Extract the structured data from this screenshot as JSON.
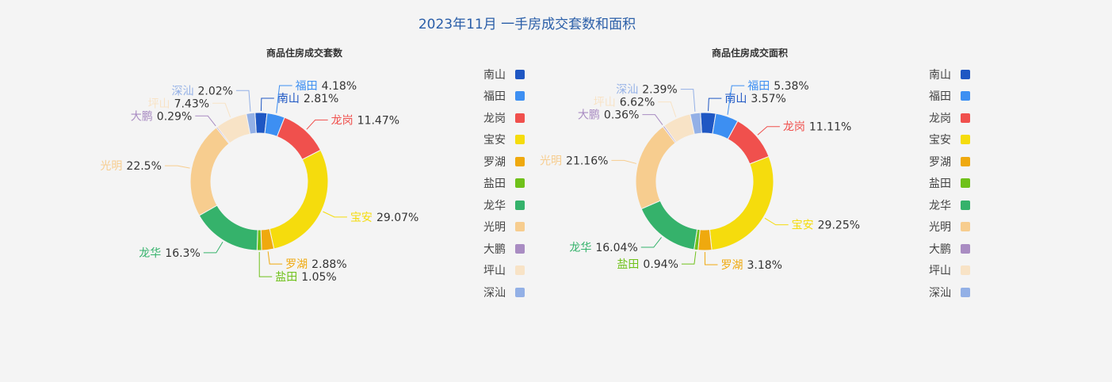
{
  "page_title": "2023年11月 一手房成交套数和面积",
  "legend_labels": [
    "南山",
    "福田",
    "龙岗",
    "宝安",
    "罗湖",
    "盐田",
    "龙华",
    "光明",
    "大鹏",
    "坪山",
    "深汕"
  ],
  "chart_data": [
    {
      "type": "pie",
      "title": "商品住房成交套数",
      "categories": [
        "南山",
        "福田",
        "龙岗",
        "宝安",
        "罗湖",
        "盐田",
        "龙华",
        "光明",
        "大鹏",
        "坪山",
        "深汕"
      ],
      "values": [
        2.81,
        4.18,
        11.47,
        29.07,
        2.88,
        1.05,
        16.3,
        22.5,
        0.29,
        7.43,
        2.02
      ],
      "value_labels": [
        "2.81%",
        "4.18%",
        "11.47%",
        "29.07%",
        "2.88%",
        "1.05%",
        "16.3%",
        "22.5%",
        "0.29%",
        "7.43%",
        "2.02%"
      ],
      "colors": [
        "#1f57c3",
        "#3d8ff2",
        "#f0504d",
        "#f5dc0d",
        "#efa90e",
        "#6fc11a",
        "#35b26b",
        "#f7cd8f",
        "#a98cc2",
        "#f8e3c6",
        "#93b0e6"
      ],
      "legend_position": "right"
    },
    {
      "type": "pie",
      "title": "商品住房成交面积",
      "categories": [
        "南山",
        "福田",
        "龙岗",
        "宝安",
        "罗湖",
        "盐田",
        "龙华",
        "光明",
        "大鹏",
        "坪山",
        "深汕"
      ],
      "values": [
        3.57,
        5.38,
        11.11,
        29.25,
        3.18,
        0.94,
        16.04,
        21.16,
        0.36,
        6.62,
        2.39
      ],
      "value_labels": [
        "3.57%",
        "5.38%",
        "11.11%",
        "29.25%",
        "3.18%",
        "0.94%",
        "16.04%",
        "21.16%",
        "0.36%",
        "6.62%",
        "2.39%"
      ],
      "colors": [
        "#1f57c3",
        "#3d8ff2",
        "#f0504d",
        "#f5dc0d",
        "#efa90e",
        "#6fc11a",
        "#35b26b",
        "#f7cd8f",
        "#a98cc2",
        "#f8e3c6",
        "#93b0e6"
      ],
      "legend_position": "right"
    }
  ]
}
